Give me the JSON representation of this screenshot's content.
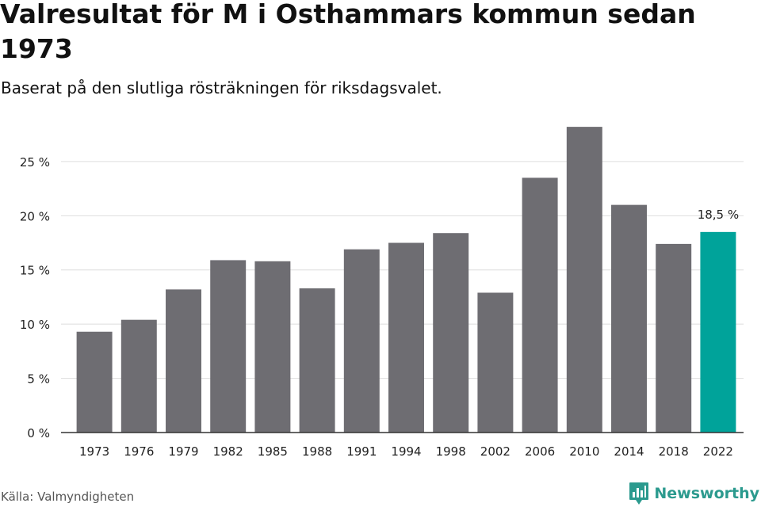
{
  "title": "Valresultat för M i Osthammars kommun sedan 1973",
  "subtitle": "Baserat på den slutliga rösträkningen för riksdagsvalet.",
  "source": "Källa: Valmyndigheten",
  "brand": {
    "name": "Newsworthy",
    "icon": "bar-chart-logo-icon",
    "color": "#2b9a8e"
  },
  "chart_data": {
    "type": "bar",
    "categories": [
      "1973",
      "1976",
      "1979",
      "1982",
      "1985",
      "1988",
      "1991",
      "1994",
      "1998",
      "2002",
      "2006",
      "2010",
      "2014",
      "2018",
      "2022"
    ],
    "values": [
      9.3,
      10.4,
      13.2,
      15.9,
      15.8,
      13.3,
      16.9,
      17.5,
      18.4,
      12.9,
      23.5,
      28.2,
      21.0,
      17.4,
      18.5
    ],
    "ylim": [
      0,
      28.5
    ],
    "yticks": [
      0,
      5,
      10,
      15,
      20,
      25
    ],
    "ytick_labels": [
      "0 %",
      "5 %",
      "10 %",
      "15 %",
      "20 %",
      "25 %"
    ],
    "xlabel": "",
    "ylabel": "",
    "grid": true,
    "bar_color": "#6e6d72",
    "highlight_color": "#00a39a",
    "highlight_index": 14,
    "annotations": [
      {
        "index": 14,
        "text": "18,5 %"
      }
    ]
  }
}
